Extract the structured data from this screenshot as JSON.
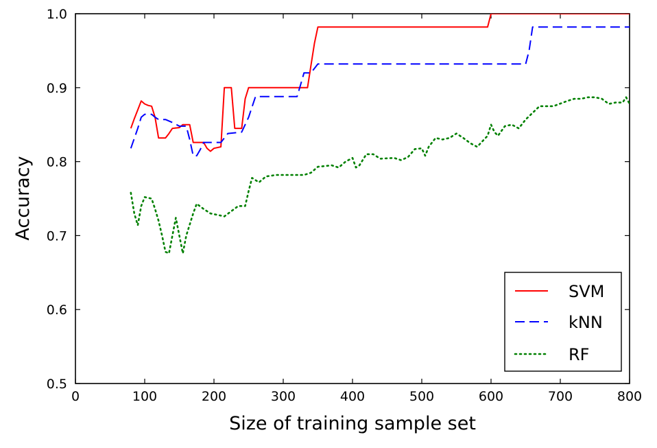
{
  "chart_data": {
    "type": "line",
    "xlabel": "Size of training sample set",
    "ylabel": "Accuracy",
    "xlim": [
      0,
      800
    ],
    "ylim": [
      0.5,
      1.0
    ],
    "xticks": [
      "0",
      "100",
      "200",
      "300",
      "400",
      "500",
      "600",
      "700",
      "800"
    ],
    "yticks": [
      "0.5",
      "0.6",
      "0.7",
      "0.8",
      "0.9",
      "1.0"
    ],
    "grid": false,
    "legend_position": "lower-right",
    "series": [
      {
        "name": "SVM",
        "color": "#ff0000",
        "style": "solid",
        "points": [
          [
            80,
            0.845
          ],
          [
            85,
            0.858
          ],
          [
            90,
            0.87
          ],
          [
            95,
            0.882
          ],
          [
            100,
            0.878
          ],
          [
            105,
            0.876
          ],
          [
            110,
            0.875
          ],
          [
            115,
            0.86
          ],
          [
            120,
            0.832
          ],
          [
            130,
            0.832
          ],
          [
            135,
            0.838
          ],
          [
            140,
            0.845
          ],
          [
            150,
            0.846
          ],
          [
            155,
            0.85
          ],
          [
            165,
            0.85
          ],
          [
            170,
            0.826
          ],
          [
            185,
            0.826
          ],
          [
            190,
            0.818
          ],
          [
            195,
            0.814
          ],
          [
            200,
            0.818
          ],
          [
            210,
            0.82
          ],
          [
            215,
            0.9
          ],
          [
            225,
            0.9
          ],
          [
            230,
            0.845
          ],
          [
            240,
            0.845
          ],
          [
            245,
            0.885
          ],
          [
            250,
            0.9
          ],
          [
            330,
            0.9
          ],
          [
            335,
            0.9
          ],
          [
            340,
            0.93
          ],
          [
            345,
            0.96
          ],
          [
            350,
            0.982
          ],
          [
            595,
            0.982
          ],
          [
            600,
            1.0
          ],
          [
            800,
            1.0
          ]
        ]
      },
      {
        "name": "kNN",
        "color": "#0000ff",
        "style": "dashed",
        "points": [
          [
            80,
            0.818
          ],
          [
            90,
            0.845
          ],
          [
            95,
            0.86
          ],
          [
            100,
            0.864
          ],
          [
            110,
            0.864
          ],
          [
            115,
            0.86
          ],
          [
            120,
            0.857
          ],
          [
            130,
            0.857
          ],
          [
            140,
            0.853
          ],
          [
            150,
            0.848
          ],
          [
            160,
            0.848
          ],
          [
            165,
            0.83
          ],
          [
            170,
            0.808
          ],
          [
            175,
            0.808
          ],
          [
            180,
            0.816
          ],
          [
            185,
            0.826
          ],
          [
            210,
            0.826
          ],
          [
            220,
            0.838
          ],
          [
            240,
            0.84
          ],
          [
            250,
            0.86
          ],
          [
            260,
            0.888
          ],
          [
            320,
            0.888
          ],
          [
            325,
            0.904
          ],
          [
            330,
            0.92
          ],
          [
            340,
            0.92
          ],
          [
            350,
            0.932
          ],
          [
            650,
            0.932
          ],
          [
            655,
            0.95
          ],
          [
            660,
            0.982
          ],
          [
            800,
            0.982
          ]
        ]
      },
      {
        "name": "RF",
        "color": "#008000",
        "style": "dotted",
        "points": [
          [
            80,
            0.758
          ],
          [
            85,
            0.73
          ],
          [
            90,
            0.714
          ],
          [
            95,
            0.74
          ],
          [
            100,
            0.752
          ],
          [
            110,
            0.75
          ],
          [
            115,
            0.736
          ],
          [
            120,
            0.72
          ],
          [
            125,
            0.7
          ],
          [
            130,
            0.678
          ],
          [
            135,
            0.676
          ],
          [
            140,
            0.7
          ],
          [
            145,
            0.724
          ],
          [
            150,
            0.7
          ],
          [
            155,
            0.676
          ],
          [
            160,
            0.7
          ],
          [
            170,
            0.73
          ],
          [
            175,
            0.743
          ],
          [
            185,
            0.736
          ],
          [
            195,
            0.73
          ],
          [
            205,
            0.728
          ],
          [
            215,
            0.726
          ],
          [
            225,
            0.733
          ],
          [
            235,
            0.74
          ],
          [
            245,
            0.74
          ],
          [
            250,
            0.76
          ],
          [
            255,
            0.778
          ],
          [
            265,
            0.772
          ],
          [
            275,
            0.78
          ],
          [
            290,
            0.782
          ],
          [
            330,
            0.782
          ],
          [
            340,
            0.785
          ],
          [
            350,
            0.793
          ],
          [
            370,
            0.795
          ],
          [
            380,
            0.792
          ],
          [
            390,
            0.8
          ],
          [
            400,
            0.805
          ],
          [
            405,
            0.792
          ],
          [
            410,
            0.795
          ],
          [
            420,
            0.81
          ],
          [
            430,
            0.81
          ],
          [
            440,
            0.804
          ],
          [
            460,
            0.805
          ],
          [
            470,
            0.802
          ],
          [
            480,
            0.806
          ],
          [
            490,
            0.817
          ],
          [
            500,
            0.818
          ],
          [
            505,
            0.808
          ],
          [
            510,
            0.82
          ],
          [
            520,
            0.832
          ],
          [
            530,
            0.83
          ],
          [
            540,
            0.832
          ],
          [
            550,
            0.838
          ],
          [
            560,
            0.832
          ],
          [
            570,
            0.825
          ],
          [
            580,
            0.82
          ],
          [
            590,
            0.83
          ],
          [
            595,
            0.835
          ],
          [
            600,
            0.85
          ],
          [
            605,
            0.84
          ],
          [
            610,
            0.835
          ],
          [
            620,
            0.848
          ],
          [
            630,
            0.85
          ],
          [
            640,
            0.845
          ],
          [
            650,
            0.857
          ],
          [
            660,
            0.866
          ],
          [
            670,
            0.875
          ],
          [
            690,
            0.875
          ],
          [
            710,
            0.882
          ],
          [
            720,
            0.885
          ],
          [
            730,
            0.885
          ],
          [
            740,
            0.887
          ],
          [
            750,
            0.887
          ],
          [
            760,
            0.885
          ],
          [
            770,
            0.878
          ],
          [
            780,
            0.88
          ],
          [
            790,
            0.88
          ],
          [
            795,
            0.887
          ],
          [
            800,
            0.878
          ]
        ]
      }
    ]
  }
}
